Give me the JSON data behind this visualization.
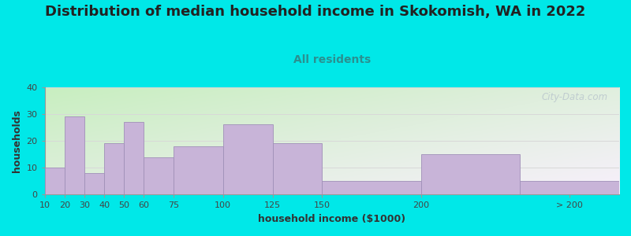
{
  "title": "Distribution of median household income in Skokomish, WA in 2022",
  "subtitle": "All residents",
  "xlabel": "household income ($1000)",
  "ylabel": "households",
  "bar_values": [
    10,
    29,
    8,
    19,
    27,
    14,
    18,
    26,
    19,
    5,
    15,
    5
  ],
  "bar_lefts": [
    10,
    20,
    30,
    40,
    50,
    60,
    75,
    100,
    125,
    150,
    200,
    250
  ],
  "bar_widths": [
    10,
    10,
    10,
    10,
    10,
    15,
    25,
    25,
    25,
    50,
    50,
    50
  ],
  "bar_color": "#c8b4d8",
  "bar_edge_color": "#a090b8",
  "ylim": [
    0,
    40
  ],
  "yticks": [
    0,
    10,
    20,
    30,
    40
  ],
  "xlim": [
    10,
    300
  ],
  "xticks_pos": [
    10,
    20,
    30,
    40,
    50,
    60,
    75,
    100,
    125,
    150,
    200,
    275
  ],
  "xticks_labels": [
    "10",
    "20",
    "30",
    "40",
    "50",
    "60",
    "75",
    "100",
    "125",
    "150",
    "200",
    "> 200"
  ],
  "bg_outer": "#00e8e8",
  "bg_plot_topleft": "#c8eec0",
  "bg_plot_topright": "#e8f4e8",
  "bg_plot_bottom": "#f0eef8",
  "title_fontsize": 13,
  "subtitle_fontsize": 10,
  "subtitle_color": "#2a9090",
  "axis_label_fontsize": 9,
  "tick_fontsize": 8,
  "watermark_text": "City-Data.com",
  "watermark_color": "#b8c4cc",
  "grid_color": "#d8d8d8",
  "title_color": "#222222",
  "tick_color": "#444444",
  "axis_label_color": "#333333"
}
